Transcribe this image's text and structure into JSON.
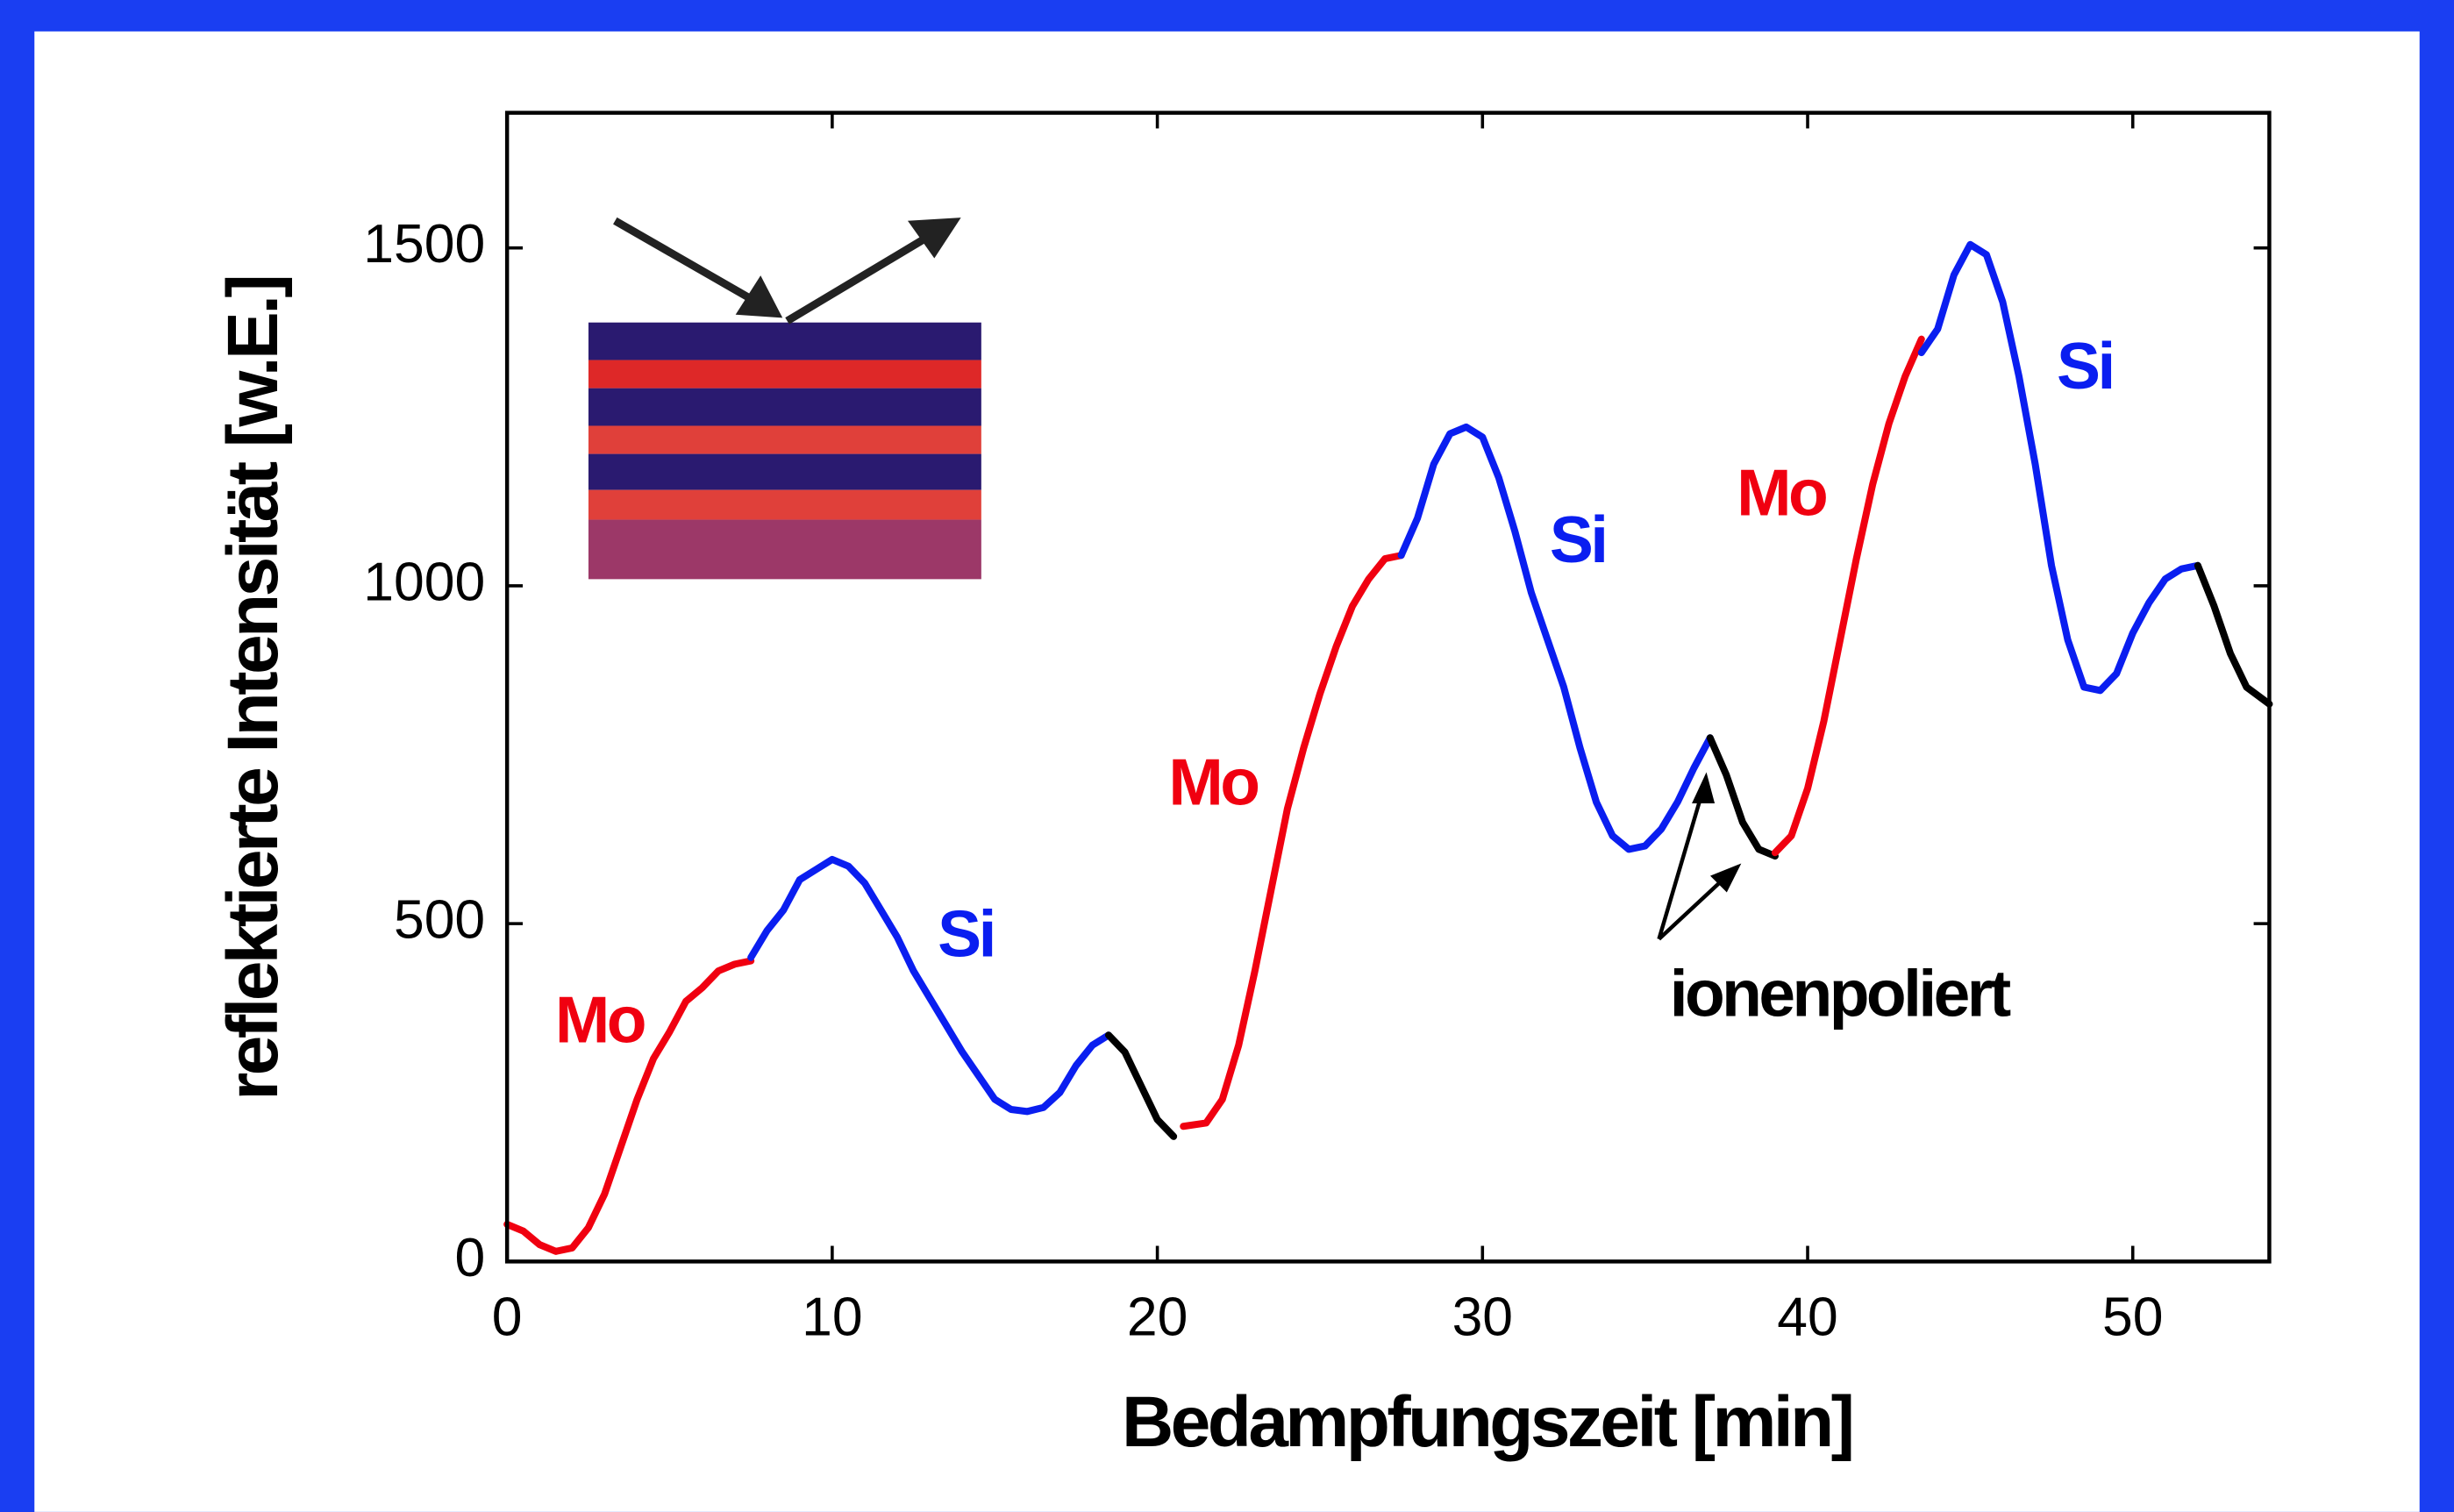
{
  "chart_data": {
    "type": "line",
    "x_label": "Bedampfungszeit [min]",
    "y_label": "reflektierte Intensität [w.E.]",
    "xlim": [
      0,
      54.2
    ],
    "ylim": [
      0,
      1700
    ],
    "xticks": [
      0,
      10,
      20,
      30,
      40,
      50
    ],
    "yticks": [
      0,
      500,
      1000,
      1500
    ],
    "series": [
      {
        "color": "#f00010",
        "x": [
          0,
          0.5,
          1,
          1.5,
          2,
          2.5,
          3,
          3.5,
          4,
          4.5,
          5,
          5.5,
          6,
          6.5,
          7,
          7.5
        ],
        "values": [
          55,
          45,
          25,
          15,
          20,
          50,
          100,
          170,
          240,
          300,
          340,
          385,
          405,
          430,
          440,
          445
        ]
      },
      {
        "color": "#0a1ef0",
        "x": [
          7.5,
          8,
          8.5,
          9,
          9.5,
          10,
          10.5,
          11,
          11.5,
          12,
          12.5,
          13,
          13.5,
          14,
          14.5,
          15,
          15.5,
          16,
          16.5,
          17,
          17.5,
          18,
          18.5
        ],
        "values": [
          450,
          490,
          520,
          565,
          580,
          595,
          585,
          560,
          520,
          480,
          430,
          390,
          350,
          310,
          275,
          240,
          225,
          222,
          228,
          250,
          290,
          320,
          335
        ]
      },
      {
        "color": "#000000",
        "x": [
          18.5,
          19,
          19.5,
          20,
          20.5
        ],
        "values": [
          335,
          310,
          260,
          210,
          185
        ]
      },
      {
        "color": "#f00010",
        "x": [
          20.8,
          21.5,
          22,
          22.5,
          23,
          23.5,
          24,
          24.5,
          25,
          25.5,
          26,
          26.5,
          27,
          27.5
        ],
        "values": [
          200,
          205,
          240,
          320,
          430,
          550,
          670,
          760,
          840,
          910,
          970,
          1010,
          1040,
          1045
        ]
      },
      {
        "color": "#0a1ef0",
        "x": [
          27.5,
          28,
          28.5,
          29,
          29.5,
          30,
          30.5,
          31,
          31.5,
          32,
          32.5,
          33,
          33.5,
          34,
          34.5,
          35,
          35.5,
          36,
          36.5,
          37
        ],
        "values": [
          1045,
          1100,
          1180,
          1225,
          1235,
          1220,
          1160,
          1080,
          990,
          920,
          850,
          760,
          680,
          630,
          610,
          615,
          640,
          680,
          730,
          775
        ]
      },
      {
        "color": "#000000",
        "x": [
          37,
          37.5,
          38,
          38.5,
          39
        ],
        "values": [
          775,
          720,
          650,
          610,
          600
        ]
      },
      {
        "color": "#f00010",
        "x": [
          39,
          39.5,
          40,
          40.5,
          41,
          41.5,
          42,
          42.5,
          43,
          43.5
        ],
        "values": [
          605,
          630,
          700,
          800,
          920,
          1040,
          1150,
          1240,
          1310,
          1365
        ]
      },
      {
        "color": "#0a1ef0",
        "x": [
          43.5,
          44,
          44.5,
          45,
          45.5,
          46,
          46.5,
          47,
          47.5,
          48,
          48.5,
          49,
          49.5,
          50,
          50.5,
          51,
          51.5,
          52
        ],
        "values": [
          1345,
          1380,
          1460,
          1505,
          1490,
          1420,
          1310,
          1180,
          1030,
          920,
          850,
          845,
          870,
          930,
          975,
          1010,
          1025,
          1030
        ]
      },
      {
        "color": "#000000",
        "x": [
          52,
          52.5,
          53,
          53.5,
          54.2
        ],
        "values": [
          1030,
          970,
          900,
          850,
          825
        ]
      }
    ],
    "annotations": [
      {
        "text": "Mo",
        "color": "#f00010"
      },
      {
        "text": "Si",
        "color": "#0a1ef0"
      },
      {
        "text": "Mo",
        "color": "#f00010"
      },
      {
        "text": "Si",
        "color": "#0a1ef0"
      },
      {
        "text": "Mo",
        "color": "#f00010"
      },
      {
        "text": "Si",
        "color": "#0a1ef0"
      },
      {
        "text": "ionenpoliert",
        "color": "#000000"
      }
    ]
  }
}
